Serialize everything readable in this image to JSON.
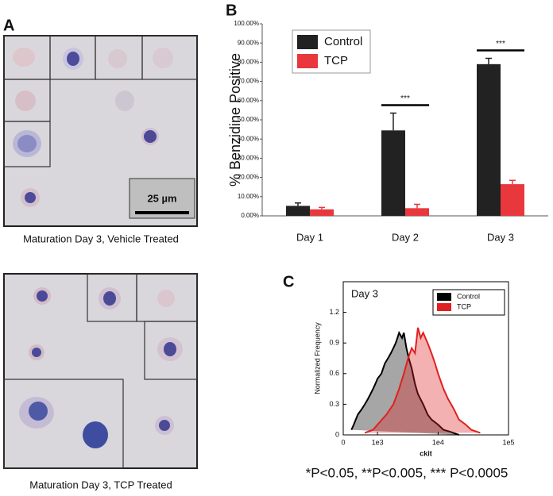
{
  "panel_labels": [
    "A",
    "B",
    "C"
  ],
  "panel_a": {
    "captions": [
      "Maturation Day 3, Vehicle Treated",
      "Maturation Day 3,  TCP Treated"
    ],
    "scale_bar": "25 µm"
  },
  "footnote": "*P<0.05, **P<0.005, *** P<0.0005",
  "chart_data": [
    {
      "type": "bar",
      "ylabel": "% Benzidine Positive",
      "categories": [
        "Day 1",
        "Day 2",
        "Day 3"
      ],
      "series": [
        {
          "name": "Control",
          "color": "#222222",
          "values": [
            5.2,
            44.5,
            79
          ],
          "errors": [
            1.5,
            9,
            3
          ]
        },
        {
          "name": "TCP",
          "color": "#e8383d",
          "values": [
            3.4,
            4.0,
            16.5
          ],
          "errors": [
            1,
            2,
            2
          ]
        }
      ],
      "ylim": [
        0,
        100
      ],
      "yticks": [
        {
          "value": 0,
          "label": "0.00%"
        },
        {
          "value": 10,
          "label": "10.00%"
        },
        {
          "value": 20,
          "label": "20.00%"
        },
        {
          "value": 30,
          "label": "30.00%"
        },
        {
          "value": 40,
          "label": "40.00%"
        },
        {
          "value": 50,
          "label": "50.00%"
        },
        {
          "value": 60,
          "label": "60.00%"
        },
        {
          "value": 70,
          "label": "70.00%"
        },
        {
          "value": 80,
          "label": "80.00%"
        },
        {
          "value": 90,
          "label": "90.00%"
        },
        {
          "value": 100,
          "label": "100.00%"
        }
      ],
      "annotations": [
        {
          "text": "***",
          "category": "Day 2"
        },
        {
          "text": "***",
          "category": "Day 3"
        }
      ],
      "legend": "upper-left"
    },
    {
      "type": "line",
      "title": "Day 3",
      "xlabel": "ckit",
      "ylabel": "Normalized Frequency",
      "xscale": "symlog",
      "series": [
        {
          "name": "Control",
          "color": "#000000",
          "x": [
            150,
            200,
            300,
            400,
            500,
            600,
            700,
            800,
            900,
            1000,
            1200,
            1400,
            1600,
            1800,
            2000,
            2200,
            2500,
            2800,
            3000,
            3300,
            3600,
            4000,
            4500,
            5000,
            6000,
            7000,
            8000,
            10000,
            12000,
            15000,
            20000
          ],
          "values": [
            0.05,
            0.1,
            0.2,
            0.25,
            0.3,
            0.35,
            0.4,
            0.45,
            0.5,
            0.55,
            0.6,
            0.7,
            0.75,
            0.8,
            0.85,
            0.9,
            1.0,
            0.95,
            1.0,
            0.85,
            0.75,
            0.65,
            0.5,
            0.4,
            0.3,
            0.2,
            0.15,
            0.1,
            0.05,
            0.03,
            0
          ]
        },
        {
          "name": "TCP",
          "color": "#e02020",
          "x": [
            500,
            800,
            1000,
            1500,
            2000,
            2500,
            3000,
            3500,
            4000,
            4500,
            5000,
            5500,
            6000,
            7000,
            8000,
            9000,
            10000,
            12000,
            14000,
            17000,
            20000,
            25000,
            30000,
            40000
          ],
          "values": [
            0.02,
            0.05,
            0.1,
            0.2,
            0.3,
            0.45,
            0.6,
            0.75,
            0.85,
            0.8,
            1.05,
            0.95,
            1.0,
            0.9,
            0.8,
            0.7,
            0.6,
            0.45,
            0.35,
            0.25,
            0.15,
            0.1,
            0.05,
            0.02
          ]
        }
      ],
      "xlim": [
        0,
        100000
      ],
      "xticks": [
        0,
        {
          "value": 1000,
          "label": "1e3"
        },
        {
          "value": 10000,
          "label": "1e4"
        },
        {
          "value": 100000,
          "label": "1e5"
        }
      ],
      "ylim": [
        0,
        1.5
      ],
      "yticks": [
        0,
        0.3,
        0.6,
        0.9,
        1.2
      ],
      "legend": "upper-right"
    }
  ]
}
